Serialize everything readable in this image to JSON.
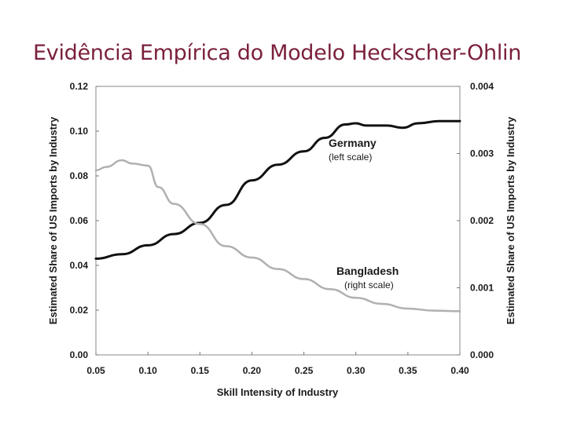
{
  "slide": {
    "title": "Evidência Empírica do Modelo Heckscher-Ohlin"
  },
  "colors": {
    "title": "#7a1f3a",
    "germany": "#111111",
    "bangladesh": "#b0b0b0"
  },
  "chart_data": {
    "type": "line",
    "xlabel": "Skill Intensity of Industry",
    "ylabel_left": "Estimated Share of US Imports by Industry",
    "ylabel_right": "Estimated Share of US Imports by Industry",
    "xlim": [
      0.05,
      0.4
    ],
    "ylim_left": [
      0.0,
      0.12
    ],
    "ylim_right": [
      0.0,
      0.004
    ],
    "x_ticks": [
      "0.05",
      "0.10",
      "0.15",
      "0.20",
      "0.25",
      "0.30",
      "0.35",
      "0.40"
    ],
    "y_ticks_left": [
      "0.00",
      "0.02",
      "0.04",
      "0.06",
      "0.08",
      "0.10",
      "0.12"
    ],
    "y_ticks_right": [
      "0.000",
      "0.001",
      "0.002",
      "0.003",
      "0.004"
    ],
    "grid": false,
    "series": [
      {
        "name": "Germany",
        "note": "(left scale)",
        "axis": "left",
        "x": [
          0.05,
          0.075,
          0.1,
          0.125,
          0.15,
          0.175,
          0.2,
          0.225,
          0.25,
          0.27,
          0.29,
          0.3,
          0.31,
          0.33,
          0.345,
          0.36,
          0.38,
          0.4
        ],
        "y": [
          0.043,
          0.045,
          0.049,
          0.054,
          0.059,
          0.067,
          0.078,
          0.085,
          0.091,
          0.097,
          0.103,
          0.1035,
          0.1025,
          0.1025,
          0.1015,
          0.1035,
          0.1045,
          0.1045
        ]
      },
      {
        "name": "Bangladesh",
        "note": "(right scale)",
        "axis": "right",
        "x": [
          0.05,
          0.06,
          0.075,
          0.085,
          0.1,
          0.11,
          0.125,
          0.15,
          0.175,
          0.2,
          0.225,
          0.25,
          0.275,
          0.3,
          0.325,
          0.35,
          0.375,
          0.4
        ],
        "y": [
          0.00275,
          0.0028,
          0.0029,
          0.00285,
          0.00282,
          0.0025,
          0.00225,
          0.00195,
          0.00162,
          0.00145,
          0.00128,
          0.00113,
          0.00098,
          0.00085,
          0.00076,
          0.00069,
          0.00066,
          0.00065
        ]
      }
    ]
  }
}
